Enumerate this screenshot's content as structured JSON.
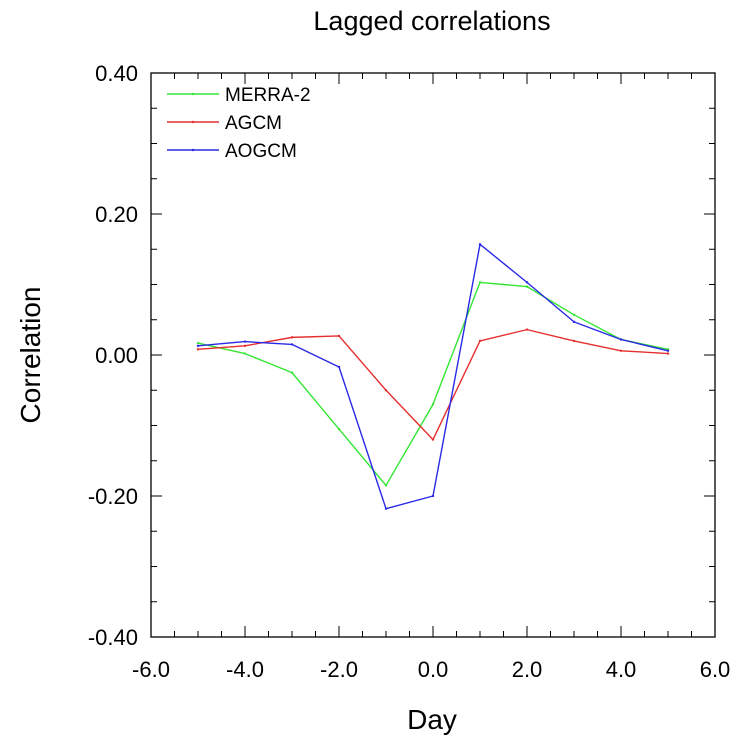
{
  "chart_data": {
    "type": "line",
    "title": "Lagged correlations",
    "xlabel": "Day",
    "ylabel": "Correlation",
    "xlim": [
      -6.0,
      6.0
    ],
    "ylim": [
      -0.4,
      0.4
    ],
    "x_ticks": [
      -6.0,
      -4.0,
      -2.0,
      0.0,
      2.0,
      4.0,
      6.0
    ],
    "x_tick_labels": [
      "-6.0",
      "-4.0",
      "-2.0",
      "0.0",
      "2.0",
      "4.0",
      "6.0"
    ],
    "y_ticks": [
      -0.4,
      -0.2,
      0.0,
      0.2,
      0.4
    ],
    "y_tick_labels": [
      "-0.40",
      "-0.20",
      "0.00",
      "0.20",
      "0.40"
    ],
    "grid": false,
    "legend_position": "top-left",
    "x": [
      -5,
      -4,
      -3,
      -2,
      -1,
      0,
      1,
      2,
      3,
      4,
      5
    ],
    "series": [
      {
        "name": "MERRA-2",
        "color": "#33e633",
        "values": [
          0.017,
          0.002,
          -0.025,
          -0.105,
          -0.185,
          -0.07,
          0.103,
          0.097,
          0.057,
          0.022,
          0.008
        ]
      },
      {
        "name": "AGCM",
        "color": "#e62e2e",
        "values": [
          0.008,
          0.013,
          0.025,
          0.027,
          -0.05,
          -0.12,
          0.02,
          0.036,
          0.02,
          0.006,
          0.002
        ]
      },
      {
        "name": "AOGCM",
        "color": "#2a2ae6",
        "values": [
          0.013,
          0.019,
          0.015,
          -0.017,
          -0.218,
          -0.2,
          0.157,
          0.103,
          0.047,
          0.022,
          0.006
        ]
      }
    ]
  }
}
